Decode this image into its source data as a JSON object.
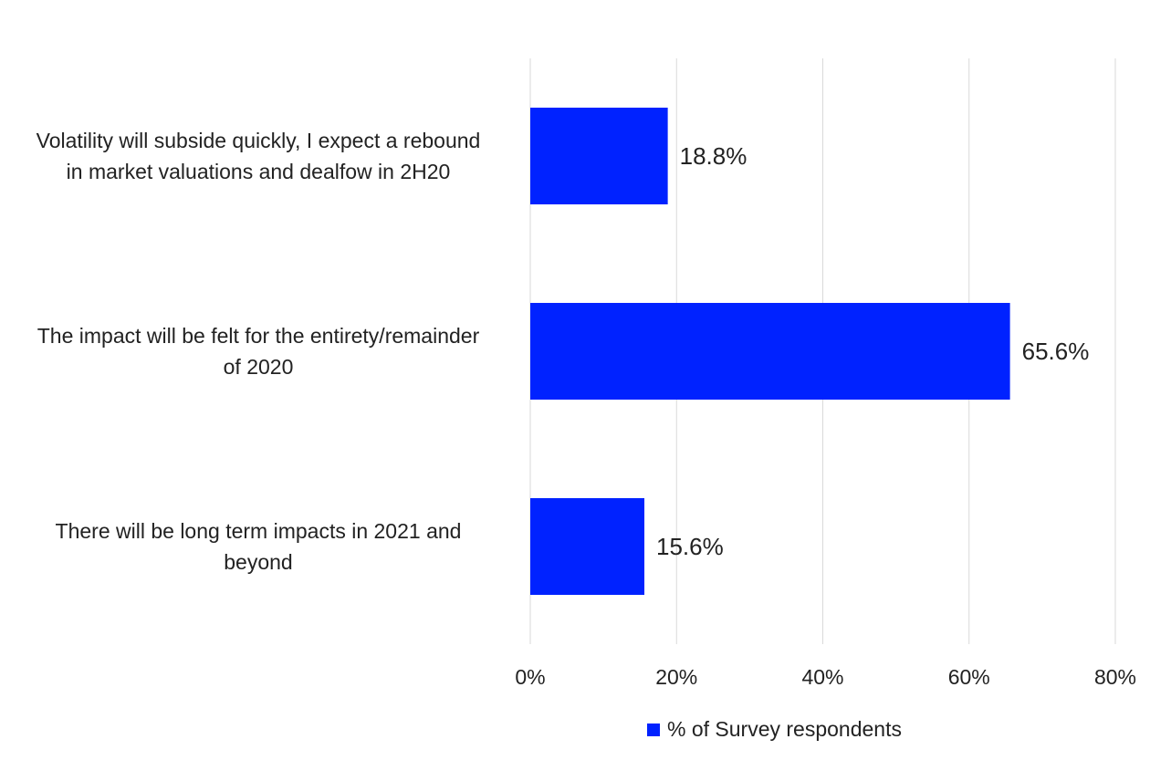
{
  "chart_data": {
    "type": "bar",
    "orientation": "horizontal",
    "categories": [
      [
        "Volatility will subside quickly, I expect a rebound",
        "in market valuations and dealfow in 2H20"
      ],
      [
        "The impact will be felt for the entirety/remainder",
        "of 2020"
      ],
      [
        "There will be long term impacts in 2021 and",
        "beyond"
      ]
    ],
    "series": [
      {
        "name": "% of Survey respondents",
        "values": [
          18.8,
          65.6,
          15.6
        ],
        "data_labels": [
          "18.8%",
          "65.6%",
          "15.6%"
        ],
        "color": "#0022ff"
      }
    ],
    "xlim": [
      0,
      80
    ],
    "xticks": [
      0,
      20,
      40,
      60,
      80
    ],
    "xtick_labels": [
      "0%",
      "20%",
      "40%",
      "60%",
      "80%"
    ],
    "grid": "vertical",
    "grid_color": "#d9d9d9",
    "legend": "bottom"
  }
}
